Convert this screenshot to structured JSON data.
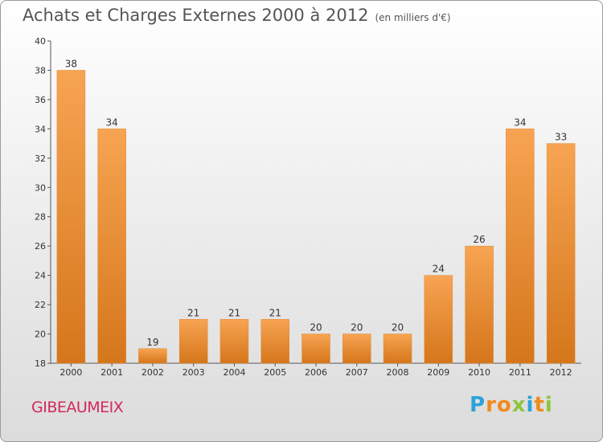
{
  "header": {
    "title": "Achats et Charges Externes 2000 à 2012",
    "unit": "(en milliers d'€)"
  },
  "footer": {
    "commune": "GIBEAUMEIX",
    "logo_letters": [
      "P",
      "r",
      "o",
      "x",
      "i",
      "t",
      "i"
    ]
  },
  "colors": {
    "bar_top": "#f7a452",
    "bar_bottom": "#d5761b",
    "commune_text": "#d2295b",
    "logo": [
      "#2aa3d8",
      "#f08a1c",
      "#f08a1c",
      "#8cc63f",
      "#2aa3d8",
      "#f08a1c",
      "#8cc63f"
    ]
  },
  "chart_data": {
    "type": "bar",
    "title": "Achats et Charges Externes 2000 à 2012",
    "categories": [
      "2000",
      "2001",
      "2002",
      "2003",
      "2004",
      "2005",
      "2006",
      "2007",
      "2008",
      "2009",
      "2010",
      "2011",
      "2012"
    ],
    "values": [
      38,
      34,
      19,
      21,
      21,
      21,
      20,
      20,
      20,
      24,
      26,
      34,
      33
    ],
    "ylim": [
      18,
      40
    ],
    "yticks": [
      18,
      20,
      22,
      24,
      26,
      28,
      30,
      32,
      34,
      36,
      38,
      40
    ],
    "xlabel": "",
    "ylabel": "",
    "grid": false,
    "data_labels": true
  }
}
